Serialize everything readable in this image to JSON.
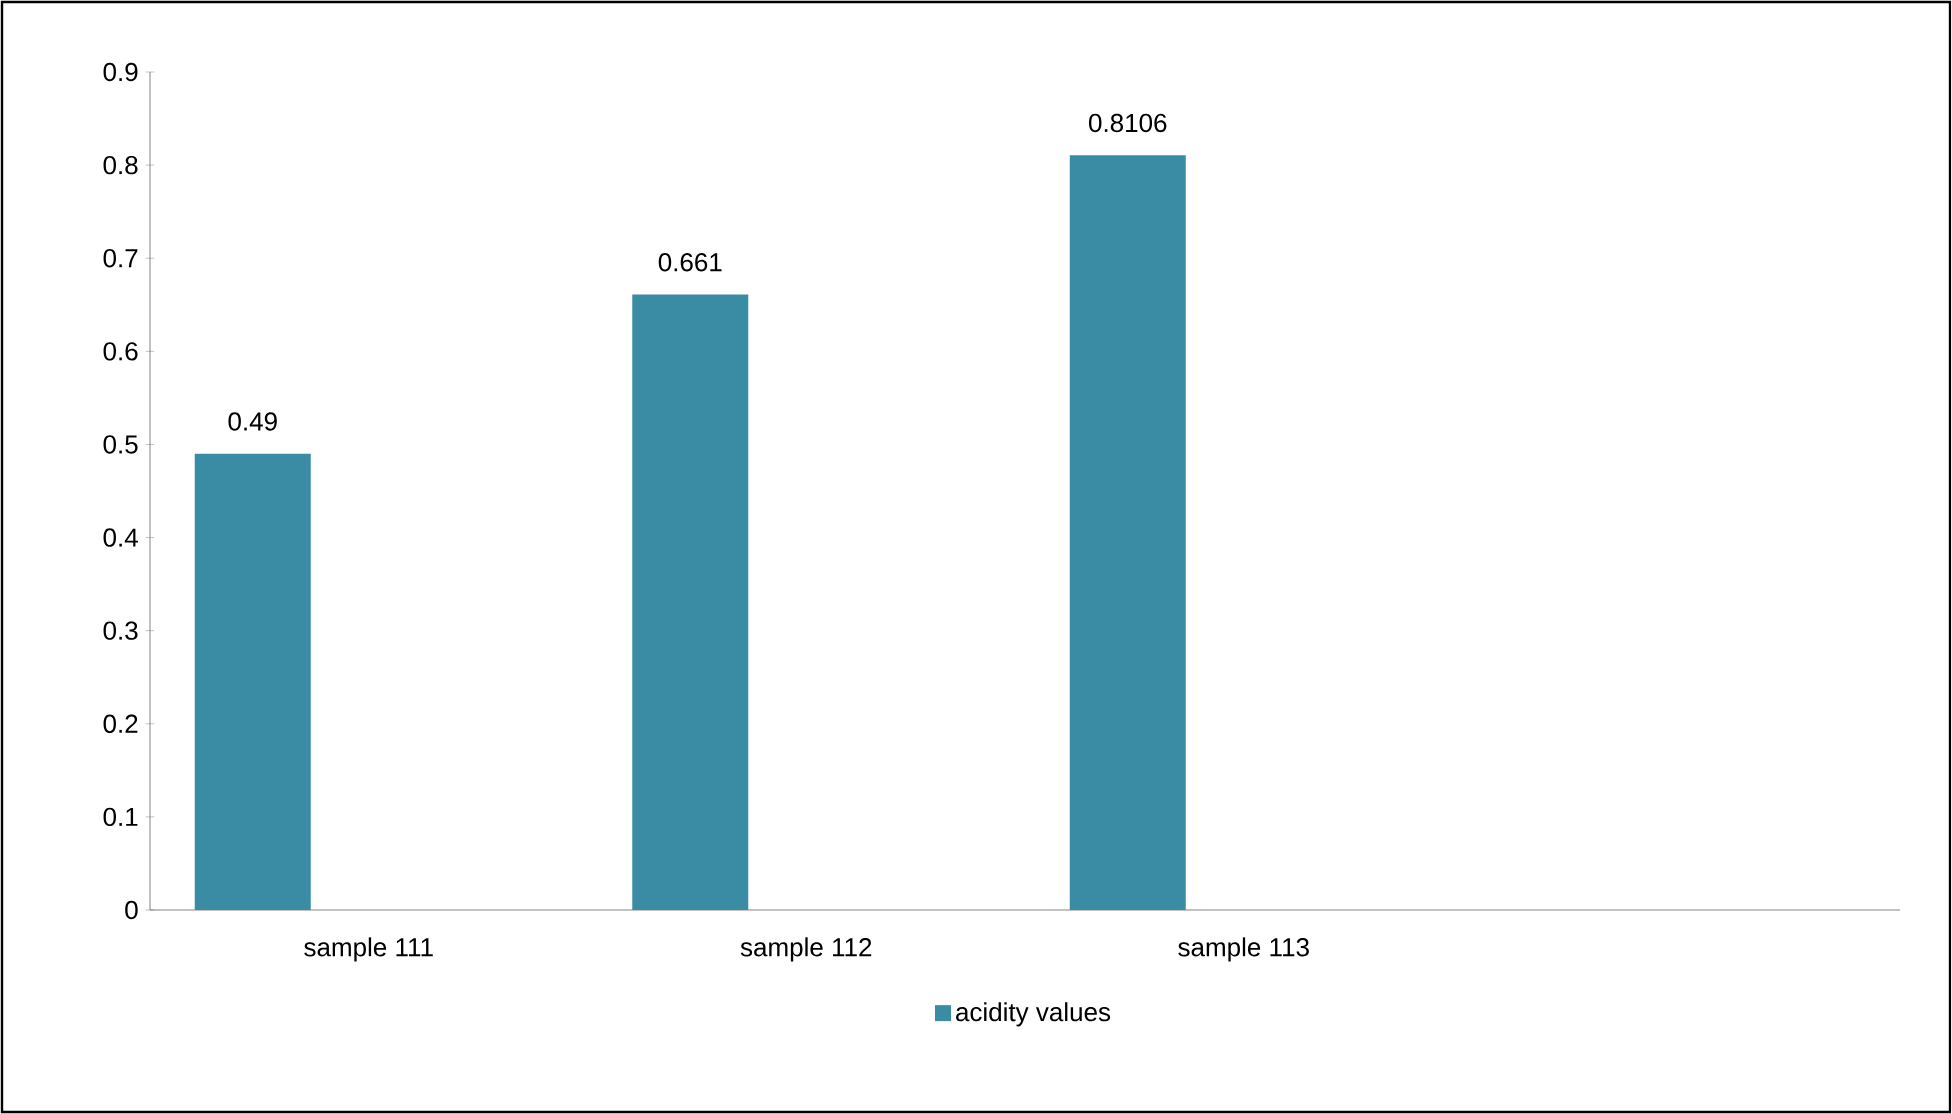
{
  "chart_data": {
    "type": "bar",
    "categories": [
      "sample  111",
      "sample 112",
      "sample 113",
      null
    ],
    "series": [
      {
        "name": "acidity values",
        "color": "#3a8ca4",
        "values": [
          0.49,
          0.661,
          0.8106,
          null
        ]
      }
    ],
    "ylim": [
      0,
      0.9
    ],
    "yticks": [
      0,
      0.1,
      0.2,
      0.3,
      0.4,
      0.5,
      0.6,
      0.7,
      0.8,
      0.9
    ],
    "data_labels": true,
    "legend": "bottom"
  }
}
